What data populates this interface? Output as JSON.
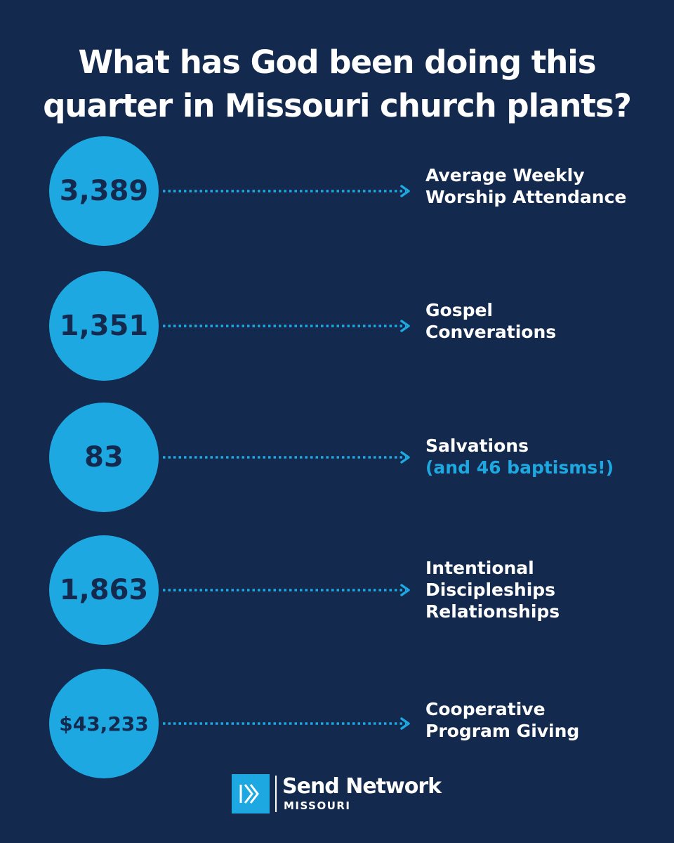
{
  "title": {
    "line1": "What has God been doing this",
    "line2": "quarter in Missouri church plants?"
  },
  "stats": [
    {
      "value": "3,389",
      "label_lines": [
        "Average Weekly",
        "Worship Attendance"
      ],
      "sub": ""
    },
    {
      "value": "1,351",
      "label_lines": [
        "Gospel",
        "Converations"
      ],
      "sub": ""
    },
    {
      "value": "83",
      "label_lines": [
        "Salvations"
      ],
      "sub": "(and 46 baptisms!)"
    },
    {
      "value": "1,863",
      "label_lines": [
        "Intentional",
        "Discipleships",
        "Relationships"
      ],
      "sub": ""
    },
    {
      "value": "$43,233",
      "label_lines": [
        "Cooperative",
        "Program Giving"
      ],
      "sub": ""
    }
  ],
  "logo": {
    "name": "Send Network",
    "region": "MISSOURI",
    "icon": "send-network-chevron-icon"
  },
  "colors": {
    "background": "#13294e",
    "accent": "#1da8e1",
    "text": "#ffffff"
  }
}
